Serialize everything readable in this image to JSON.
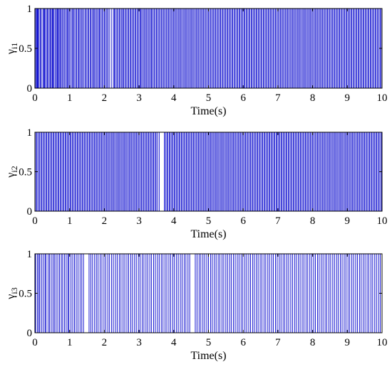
{
  "chart_data": [
    {
      "type": "line",
      "step": true,
      "xlabel": "Time(s)",
      "ylabel": {
        "base": "γ",
        "sub": "i1"
      },
      "xlim": [
        0,
        10
      ],
      "ylim": [
        0,
        1
      ],
      "xticks": [
        "0",
        "1",
        "2",
        "3",
        "4",
        "5",
        "6",
        "7",
        "8",
        "9",
        "10"
      ],
      "yticks": [
        "0",
        "0.5",
        "1"
      ],
      "grid": false,
      "series": [
        {
          "color": "#0000cc",
          "switch_times": [
            0.02,
            0.05,
            0.07,
            0.09,
            0.12,
            0.16,
            0.18,
            0.23,
            0.26,
            0.28,
            0.31,
            0.35,
            0.37,
            0.41,
            0.44,
            0.47,
            0.5,
            0.52,
            0.55,
            0.59,
            0.62,
            0.65,
            0.67,
            0.7,
            0.73,
            0.76,
            0.79,
            0.83,
            0.86,
            0.9,
            0.93,
            0.96,
            0.99,
            1.03,
            1.07,
            1.1,
            1.13,
            1.17,
            1.2,
            1.24,
            1.27,
            1.3,
            1.34,
            1.37,
            1.41,
            1.45,
            1.48,
            1.52,
            1.55,
            1.59,
            1.62,
            1.66,
            1.69,
            1.72,
            1.76,
            1.79,
            1.83,
            1.86,
            1.89,
            1.93,
            1.96,
            2.0,
            2.03,
            2.07,
            2.1,
            2.14,
            2.2,
            2.26,
            2.29,
            2.32,
            2.36,
            2.39,
            2.43,
            2.46,
            2.5,
            2.53,
            2.56,
            2.6,
            2.63,
            2.67,
            2.7,
            2.74,
            2.77,
            2.81,
            2.84,
            2.88,
            2.91,
            2.95,
            2.98,
            3.02,
            3.05,
            3.08,
            3.12,
            3.15,
            3.19,
            3.22,
            3.26,
            3.29,
            3.33,
            3.36,
            3.39,
            3.43,
            3.46,
            3.5,
            3.53,
            3.57,
            3.6,
            3.64,
            3.67,
            3.71,
            3.74,
            3.78,
            3.81,
            3.85,
            3.88,
            3.92,
            3.95,
            3.99,
            4.02,
            4.06,
            4.09,
            4.13,
            4.16,
            4.2,
            4.23,
            4.27,
            4.3,
            4.34,
            4.37,
            4.41,
            4.44,
            4.48,
            4.51,
            4.55,
            4.58,
            4.62,
            4.65,
            4.69,
            4.72,
            4.76,
            4.79,
            4.83,
            4.86,
            4.9,
            4.93,
            4.97,
            5.0,
            5.04,
            5.07,
            5.11,
            5.14,
            5.18,
            5.21,
            5.25,
            5.28,
            5.32,
            5.35,
            5.39,
            5.42,
            5.46,
            5.49,
            5.53,
            5.56,
            5.6,
            5.63,
            5.67,
            5.7,
            5.74,
            5.77,
            5.81,
            5.84,
            5.88,
            5.91,
            5.95,
            5.98,
            6.02,
            6.05,
            6.09,
            6.12,
            6.16,
            6.19,
            6.23,
            6.26,
            6.3,
            6.33,
            6.37,
            6.4,
            6.44,
            6.47,
            6.51,
            6.54,
            6.58,
            6.61,
            6.65,
            6.68,
            6.72,
            6.75,
            6.79,
            6.82,
            6.86,
            6.89,
            6.93,
            6.96,
            7.0,
            7.03,
            7.07,
            7.1,
            7.14,
            7.17,
            7.21,
            7.24,
            7.28,
            7.31,
            7.35,
            7.38,
            7.42,
            7.45,
            7.49,
            7.52,
            7.56,
            7.59,
            7.63,
            7.66,
            7.7,
            7.73,
            7.77,
            7.8,
            7.84,
            7.87,
            7.91,
            7.94,
            7.98,
            8.01,
            8.05,
            8.08,
            8.12,
            8.15,
            8.19,
            8.22,
            8.26,
            8.29,
            8.33,
            8.36,
            8.4,
            8.43,
            8.47,
            8.5,
            8.54,
            8.57,
            8.61,
            8.64,
            8.68,
            8.71,
            8.75,
            8.78,
            8.82,
            8.85,
            8.89,
            8.92,
            8.96,
            8.99,
            9.03,
            9.06,
            9.1,
            9.13,
            9.17,
            9.2,
            9.24,
            9.27,
            9.31,
            9.34,
            9.38,
            9.41,
            9.45,
            9.48,
            9.52,
            9.55,
            9.59,
            9.62,
            9.66,
            9.69,
            9.73,
            9.76,
            9.8,
            9.83,
            9.87,
            9.9,
            9.94,
            9.97
          ]
        }
      ]
    },
    {
      "type": "line",
      "step": true,
      "xlabel": "Time(s)",
      "ylabel": {
        "base": "γ",
        "sub": "i2"
      },
      "xlim": [
        0,
        10
      ],
      "ylim": [
        0,
        1
      ],
      "xticks": [
        "0",
        "1",
        "2",
        "3",
        "4",
        "5",
        "6",
        "7",
        "8",
        "9",
        "10"
      ],
      "yticks": [
        "0",
        "0.5",
        "1"
      ],
      "grid": false,
      "series": [
        {
          "color": "#0000cc",
          "switch_times": [
            0.03,
            0.06,
            0.1,
            0.13,
            0.17,
            0.2,
            0.24,
            0.27,
            0.31,
            0.34,
            0.38,
            0.41,
            0.45,
            0.48,
            0.52,
            0.55,
            0.59,
            0.62,
            0.66,
            0.69,
            0.73,
            0.76,
            0.8,
            0.83,
            0.87,
            0.9,
            0.94,
            0.97,
            1.01,
            1.04,
            1.08,
            1.11,
            1.15,
            1.18,
            1.22,
            1.25,
            1.29,
            1.32,
            1.36,
            1.39,
            1.43,
            1.46,
            1.5,
            1.53,
            1.57,
            1.6,
            1.64,
            1.67,
            1.71,
            1.74,
            1.78,
            1.81,
            1.85,
            1.88,
            1.92,
            1.95,
            1.99,
            2.02,
            2.06,
            2.09,
            2.13,
            2.16,
            2.2,
            2.23,
            2.27,
            2.3,
            2.34,
            2.37,
            2.41,
            2.44,
            2.48,
            2.51,
            2.55,
            2.58,
            2.62,
            2.65,
            2.69,
            2.72,
            2.76,
            2.79,
            2.83,
            2.86,
            2.9,
            2.93,
            2.97,
            3.0,
            3.04,
            3.07,
            3.11,
            3.14,
            3.18,
            3.21,
            3.25,
            3.28,
            3.32,
            3.35,
            3.39,
            3.42,
            3.46,
            3.49,
            3.53,
            3.58,
            3.73,
            3.76,
            3.8,
            3.83,
            3.87,
            3.9,
            3.94,
            3.97,
            4.01,
            4.04,
            4.08,
            4.11,
            4.15,
            4.18,
            4.22,
            4.25,
            4.29,
            4.32,
            4.36,
            4.39,
            4.43,
            4.46,
            4.5,
            4.53,
            4.57,
            4.6,
            4.64,
            4.67,
            4.71,
            4.74,
            4.78,
            4.81,
            4.85,
            4.88,
            4.92,
            4.95,
            4.99,
            5.02,
            5.06,
            5.09,
            5.13,
            5.16,
            5.2,
            5.23,
            5.27,
            5.3,
            5.34,
            5.37,
            5.41,
            5.44,
            5.48,
            5.51,
            5.55,
            5.58,
            5.62,
            5.65,
            5.69,
            5.72,
            5.76,
            5.79,
            5.83,
            5.86,
            5.9,
            5.93,
            5.97,
            6.0,
            6.04,
            6.07,
            6.11,
            6.14,
            6.18,
            6.21,
            6.25,
            6.28,
            6.32,
            6.35,
            6.39,
            6.42,
            6.46,
            6.49,
            6.53,
            6.56,
            6.6,
            6.63,
            6.67,
            6.7,
            6.74,
            6.77,
            6.81,
            6.84,
            6.88,
            6.91,
            6.95,
            6.98,
            7.02,
            7.05,
            7.09,
            7.12,
            7.16,
            7.19,
            7.23,
            7.26,
            7.3,
            7.33,
            7.37,
            7.4,
            7.44,
            7.47,
            7.51,
            7.54,
            7.58,
            7.61,
            7.65,
            7.68,
            7.72,
            7.75,
            7.79,
            7.82,
            7.86,
            7.89,
            7.93,
            7.96,
            8.0,
            8.03,
            8.07,
            8.1,
            8.14,
            8.17,
            8.21,
            8.24,
            8.28,
            8.31,
            8.35,
            8.38,
            8.42,
            8.45,
            8.49,
            8.52,
            8.56,
            8.59,
            8.63,
            8.66,
            8.7,
            8.73,
            8.77,
            8.8,
            8.84,
            8.87,
            8.91,
            8.94,
            8.98,
            9.01,
            9.05,
            9.08,
            9.12,
            9.15,
            9.19,
            9.22,
            9.26,
            9.29,
            9.33,
            9.36,
            9.4,
            9.43,
            9.47,
            9.5,
            9.54,
            9.57,
            9.61,
            9.64,
            9.68,
            9.71,
            9.75,
            9.78,
            9.82,
            9.85,
            9.89,
            9.92,
            9.96,
            9.99
          ]
        }
      ]
    },
    {
      "type": "line",
      "step": true,
      "xlabel": "Time(s)",
      "ylabel": {
        "base": "γ",
        "sub": "i3"
      },
      "xlim": [
        0,
        10
      ],
      "ylim": [
        0,
        1
      ],
      "xticks": [
        "0",
        "1",
        "2",
        "3",
        "4",
        "5",
        "6",
        "7",
        "8",
        "9",
        "10"
      ],
      "yticks": [
        "0",
        "0.5",
        "1"
      ],
      "grid": false,
      "series": [
        {
          "color": "#0000cc",
          "switch_times": [
            0.02,
            0.07,
            0.11,
            0.14,
            0.19,
            0.24,
            0.29,
            0.32,
            0.38,
            0.42,
            0.47,
            0.52,
            0.56,
            0.61,
            0.66,
            0.71,
            0.76,
            0.8,
            0.85,
            0.9,
            0.95,
            0.98,
            1.04,
            1.09,
            1.14,
            1.19,
            1.24,
            1.3,
            1.35,
            1.4,
            1.56,
            1.61,
            1.66,
            1.72,
            1.77,
            1.82,
            1.88,
            1.93,
            1.99,
            2.04,
            2.1,
            2.15,
            2.21,
            2.26,
            2.32,
            2.37,
            2.43,
            2.48,
            2.54,
            2.59,
            2.65,
            2.7,
            2.76,
            2.81,
            2.87,
            2.92,
            2.98,
            3.03,
            3.09,
            3.14,
            3.2,
            3.25,
            3.31,
            3.36,
            3.42,
            3.47,
            3.53,
            3.58,
            3.64,
            3.69,
            3.75,
            3.8,
            3.86,
            3.91,
            3.97,
            4.02,
            4.08,
            4.13,
            4.19,
            4.24,
            4.3,
            4.35,
            4.41,
            4.46,
            4.62,
            4.67,
            4.73,
            4.78,
            4.84,
            4.89,
            4.95,
            5.0,
            5.06,
            5.11,
            5.17,
            5.22,
            5.28,
            5.33,
            5.39,
            5.44,
            5.5,
            5.55,
            5.61,
            5.66,
            5.72,
            5.77,
            5.83,
            5.88,
            5.94,
            5.99,
            6.05,
            6.1,
            6.16,
            6.21,
            6.27,
            6.32,
            6.38,
            6.43,
            6.49,
            6.54,
            6.6,
            6.65,
            6.71,
            6.76,
            6.82,
            6.87,
            6.93,
            6.98,
            7.04,
            7.09,
            7.15,
            7.2,
            7.26,
            7.31,
            7.37,
            7.42,
            7.48,
            7.53,
            7.59,
            7.64,
            7.7,
            7.75,
            7.81,
            7.86,
            7.92,
            7.97,
            8.03,
            8.08,
            8.14,
            8.19,
            8.25,
            8.3,
            8.36,
            8.41,
            8.47,
            8.52,
            8.58,
            8.63,
            8.69,
            8.74,
            8.8,
            8.85,
            8.91,
            8.96,
            9.02,
            9.07,
            9.13,
            9.18,
            9.24,
            9.29,
            9.35,
            9.4,
            9.46,
            9.51,
            9.57,
            9.62,
            9.68,
            9.73,
            9.79,
            9.84,
            9.9,
            9.95
          ]
        }
      ]
    }
  ]
}
